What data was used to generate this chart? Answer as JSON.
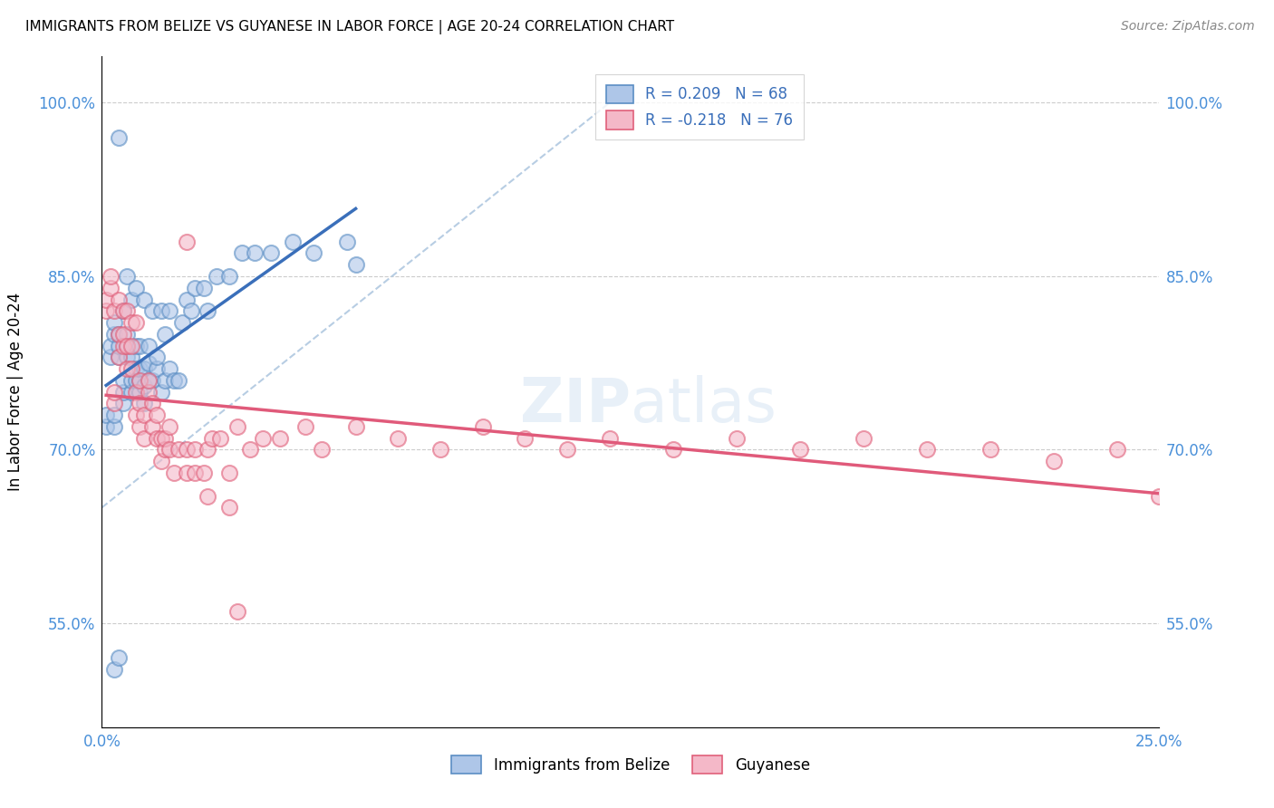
{
  "title": "IMMIGRANTS FROM BELIZE VS GUYANESE IN LABOR FORCE | AGE 20-24 CORRELATION CHART",
  "source": "Source: ZipAtlas.com",
  "ylabel": "In Labor Force | Age 20-24",
  "watermark": "ZIPatlas",
  "belize_R": 0.209,
  "belize_N": 68,
  "guyanese_R": -0.218,
  "guyanese_N": 76,
  "belize_color": "#aec6e8",
  "guyanese_color": "#f4b8c8",
  "belize_edge_color": "#5b8ec4",
  "guyanese_edge_color": "#e0607a",
  "belize_line_color": "#3a6fba",
  "guyanese_line_color": "#e05a7a",
  "dashed_line_color": "#b0c8e0",
  "legend_text_color": "#3a6fba",
  "tick_color": "#4a90d9",
  "xmin": 0.0,
  "xmax": 0.25,
  "ymin": 0.46,
  "ymax": 1.04,
  "yticks": [
    0.55,
    0.7,
    0.85,
    1.0
  ],
  "ytick_labels": [
    "55.0%",
    "70.0%",
    "85.0%",
    "100.0%"
  ],
  "xticks": [
    0.0,
    0.25
  ],
  "xtick_labels": [
    "0.0%",
    "25.0%"
  ],
  "belize_x": [
    0.001,
    0.001,
    0.002,
    0.002,
    0.003,
    0.003,
    0.003,
    0.003,
    0.004,
    0.004,
    0.004,
    0.004,
    0.005,
    0.005,
    0.005,
    0.005,
    0.006,
    0.006,
    0.006,
    0.006,
    0.007,
    0.007,
    0.007,
    0.007,
    0.008,
    0.008,
    0.008,
    0.008,
    0.009,
    0.009,
    0.009,
    0.009,
    0.01,
    0.01,
    0.01,
    0.01,
    0.011,
    0.011,
    0.011,
    0.012,
    0.012,
    0.013,
    0.013,
    0.014,
    0.014,
    0.015,
    0.015,
    0.016,
    0.016,
    0.017,
    0.018,
    0.019,
    0.02,
    0.021,
    0.022,
    0.024,
    0.025,
    0.027,
    0.03,
    0.033,
    0.036,
    0.04,
    0.045,
    0.05,
    0.058,
    0.06,
    0.003,
    0.004
  ],
  "belize_y": [
    0.72,
    0.73,
    0.78,
    0.79,
    0.72,
    0.73,
    0.8,
    0.81,
    0.78,
    0.79,
    0.8,
    0.97,
    0.74,
    0.75,
    0.76,
    0.82,
    0.78,
    0.79,
    0.8,
    0.85,
    0.75,
    0.76,
    0.78,
    0.83,
    0.76,
    0.77,
    0.79,
    0.84,
    0.75,
    0.76,
    0.77,
    0.79,
    0.74,
    0.755,
    0.77,
    0.83,
    0.76,
    0.775,
    0.79,
    0.76,
    0.82,
    0.77,
    0.78,
    0.75,
    0.82,
    0.76,
    0.8,
    0.77,
    0.82,
    0.76,
    0.76,
    0.81,
    0.83,
    0.82,
    0.84,
    0.84,
    0.82,
    0.85,
    0.85,
    0.87,
    0.87,
    0.87,
    0.88,
    0.87,
    0.88,
    0.86,
    0.51,
    0.52
  ],
  "guyanese_x": [
    0.001,
    0.001,
    0.002,
    0.002,
    0.003,
    0.003,
    0.003,
    0.004,
    0.004,
    0.004,
    0.005,
    0.005,
    0.005,
    0.006,
    0.006,
    0.006,
    0.007,
    0.007,
    0.007,
    0.008,
    0.008,
    0.008,
    0.009,
    0.009,
    0.009,
    0.01,
    0.01,
    0.011,
    0.011,
    0.012,
    0.012,
    0.013,
    0.013,
    0.014,
    0.014,
    0.015,
    0.015,
    0.016,
    0.016,
    0.017,
    0.018,
    0.02,
    0.02,
    0.022,
    0.022,
    0.024,
    0.025,
    0.026,
    0.028,
    0.03,
    0.032,
    0.035,
    0.038,
    0.042,
    0.048,
    0.052,
    0.06,
    0.07,
    0.08,
    0.09,
    0.1,
    0.11,
    0.12,
    0.135,
    0.15,
    0.165,
    0.18,
    0.195,
    0.21,
    0.225,
    0.24,
    0.25,
    0.032,
    0.02,
    0.025,
    0.03
  ],
  "guyanese_y": [
    0.82,
    0.83,
    0.84,
    0.85,
    0.74,
    0.75,
    0.82,
    0.78,
    0.8,
    0.83,
    0.79,
    0.8,
    0.82,
    0.77,
    0.79,
    0.82,
    0.77,
    0.79,
    0.81,
    0.73,
    0.75,
    0.81,
    0.72,
    0.74,
    0.76,
    0.71,
    0.73,
    0.75,
    0.76,
    0.72,
    0.74,
    0.71,
    0.73,
    0.69,
    0.71,
    0.7,
    0.71,
    0.7,
    0.72,
    0.68,
    0.7,
    0.68,
    0.7,
    0.68,
    0.7,
    0.68,
    0.7,
    0.71,
    0.71,
    0.68,
    0.72,
    0.7,
    0.71,
    0.71,
    0.72,
    0.7,
    0.72,
    0.71,
    0.7,
    0.72,
    0.71,
    0.7,
    0.71,
    0.7,
    0.71,
    0.7,
    0.71,
    0.7,
    0.7,
    0.69,
    0.7,
    0.66,
    0.56,
    0.88,
    0.66,
    0.65
  ]
}
